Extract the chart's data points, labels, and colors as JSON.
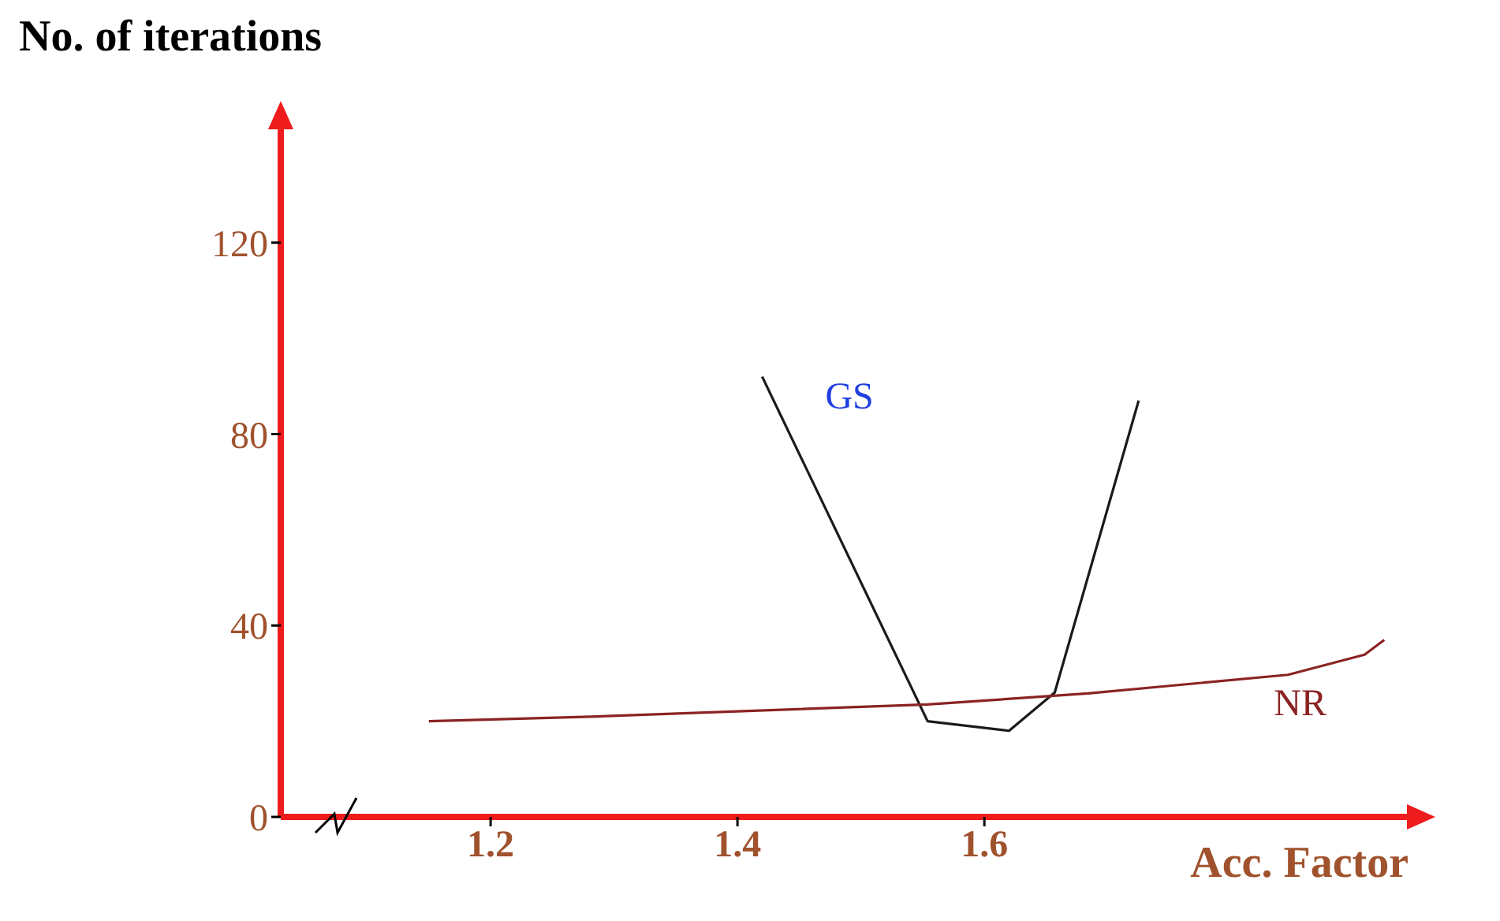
{
  "chart_data": {
    "type": "line",
    "xlabel": "Acc. Factor",
    "ylabel": "No. of iterations",
    "xlim": [
      1.03,
      1.95
    ],
    "xticks": [
      1.2,
      1.4,
      1.6
    ],
    "ylim": [
      0,
      145
    ],
    "yticks": [
      0,
      40,
      80,
      120
    ],
    "grid": false,
    "legend": false,
    "marker": "none",
    "line_style": "solid",
    "series": [
      {
        "name": "GS",
        "color": "#1a1a1a",
        "x": [
          1.42,
          1.554,
          1.62,
          1.657,
          1.725
        ],
        "values": [
          92,
          20,
          18,
          26,
          87
        ]
      },
      {
        "name": "NR",
        "color": "#8b2323",
        "x": [
          1.15,
          1.287,
          1.554,
          1.684,
          1.846,
          1.908,
          1.924
        ],
        "values": [
          20,
          21,
          23.5,
          25.8,
          29.7,
          33.9,
          37
        ]
      }
    ]
  }
}
